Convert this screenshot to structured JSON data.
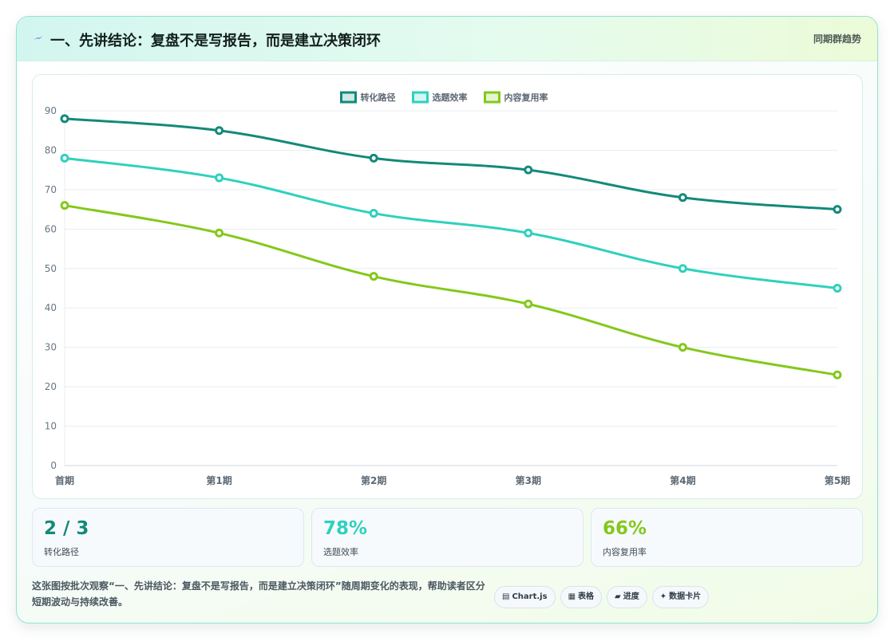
{
  "header": {
    "icon": "lightning-icon",
    "title": "一、先讲结论：复盘不是写报告，而是建立决策闭环",
    "link_label": "同期群趋势"
  },
  "chart_data": {
    "type": "line",
    "categories": [
      "首期",
      "第1期",
      "第2期",
      "第3期",
      "第4期",
      "第5期"
    ],
    "series": [
      {
        "name": "转化路径",
        "values": [
          88,
          85,
          78,
          75,
          68,
          65
        ],
        "color": "#138a78"
      },
      {
        "name": "选题效率",
        "values": [
          78,
          73,
          64,
          59,
          50,
          45
        ],
        "color": "#2fd1bd"
      },
      {
        "name": "内容复用率",
        "values": [
          66,
          59,
          48,
          41,
          30,
          23
        ],
        "color": "#84c81a"
      }
    ],
    "yticks": [
      0,
      10,
      20,
      30,
      40,
      50,
      60,
      70,
      80,
      90
    ],
    "ylim": [
      0,
      90
    ],
    "grid": true,
    "legend_position": "top-center"
  },
  "stats": [
    {
      "value": "2 / 3",
      "label": "转化路径",
      "color": "#138a78"
    },
    {
      "value": "78%",
      "label": "选题效率",
      "color": "#2fd1bd"
    },
    {
      "value": "66%",
      "label": "内容复用率",
      "color": "#84c81a"
    }
  ],
  "footer": {
    "text": "这张图按批次观察“一、先讲结论：复盘不是写报告，而是建立决策闭环”随周期变化的表现，帮助读者区分短期波动与持续改善。",
    "tags": [
      {
        "icon": "▤",
        "label": "Chart.js"
      },
      {
        "icon": "▦",
        "label": "表格"
      },
      {
        "icon": "▰",
        "label": "进度"
      },
      {
        "icon": "✦",
        "label": "数据卡片"
      }
    ]
  }
}
